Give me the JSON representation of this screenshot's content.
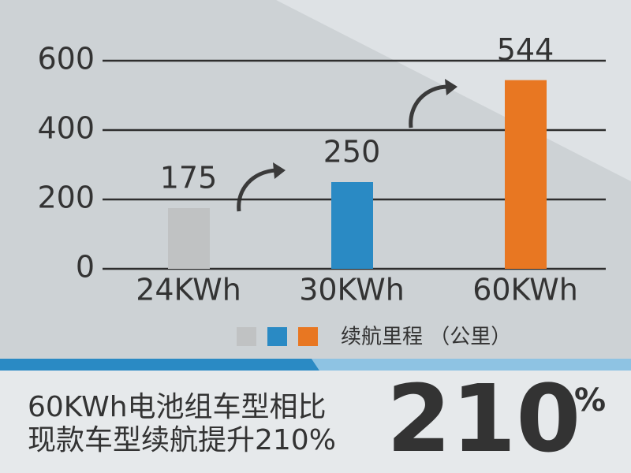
{
  "chart_data": {
    "type": "bar",
    "categories": [
      "24KWh",
      "30KWh",
      "60KWh"
    ],
    "values": [
      175,
      250,
      544
    ],
    "colors": [
      "#c0c2c3",
      "#2a8ac4",
      "#e87722"
    ],
    "ylim": [
      0,
      600
    ],
    "yticks": [
      0,
      200,
      400,
      600
    ],
    "grid": true,
    "legend_label": "续航里程 （公里）"
  },
  "footer": {
    "lines": [
      "60KWh电池组车型相比",
      "现款车型续航提升210%"
    ],
    "big_number": 210,
    "big_unit": "%"
  }
}
